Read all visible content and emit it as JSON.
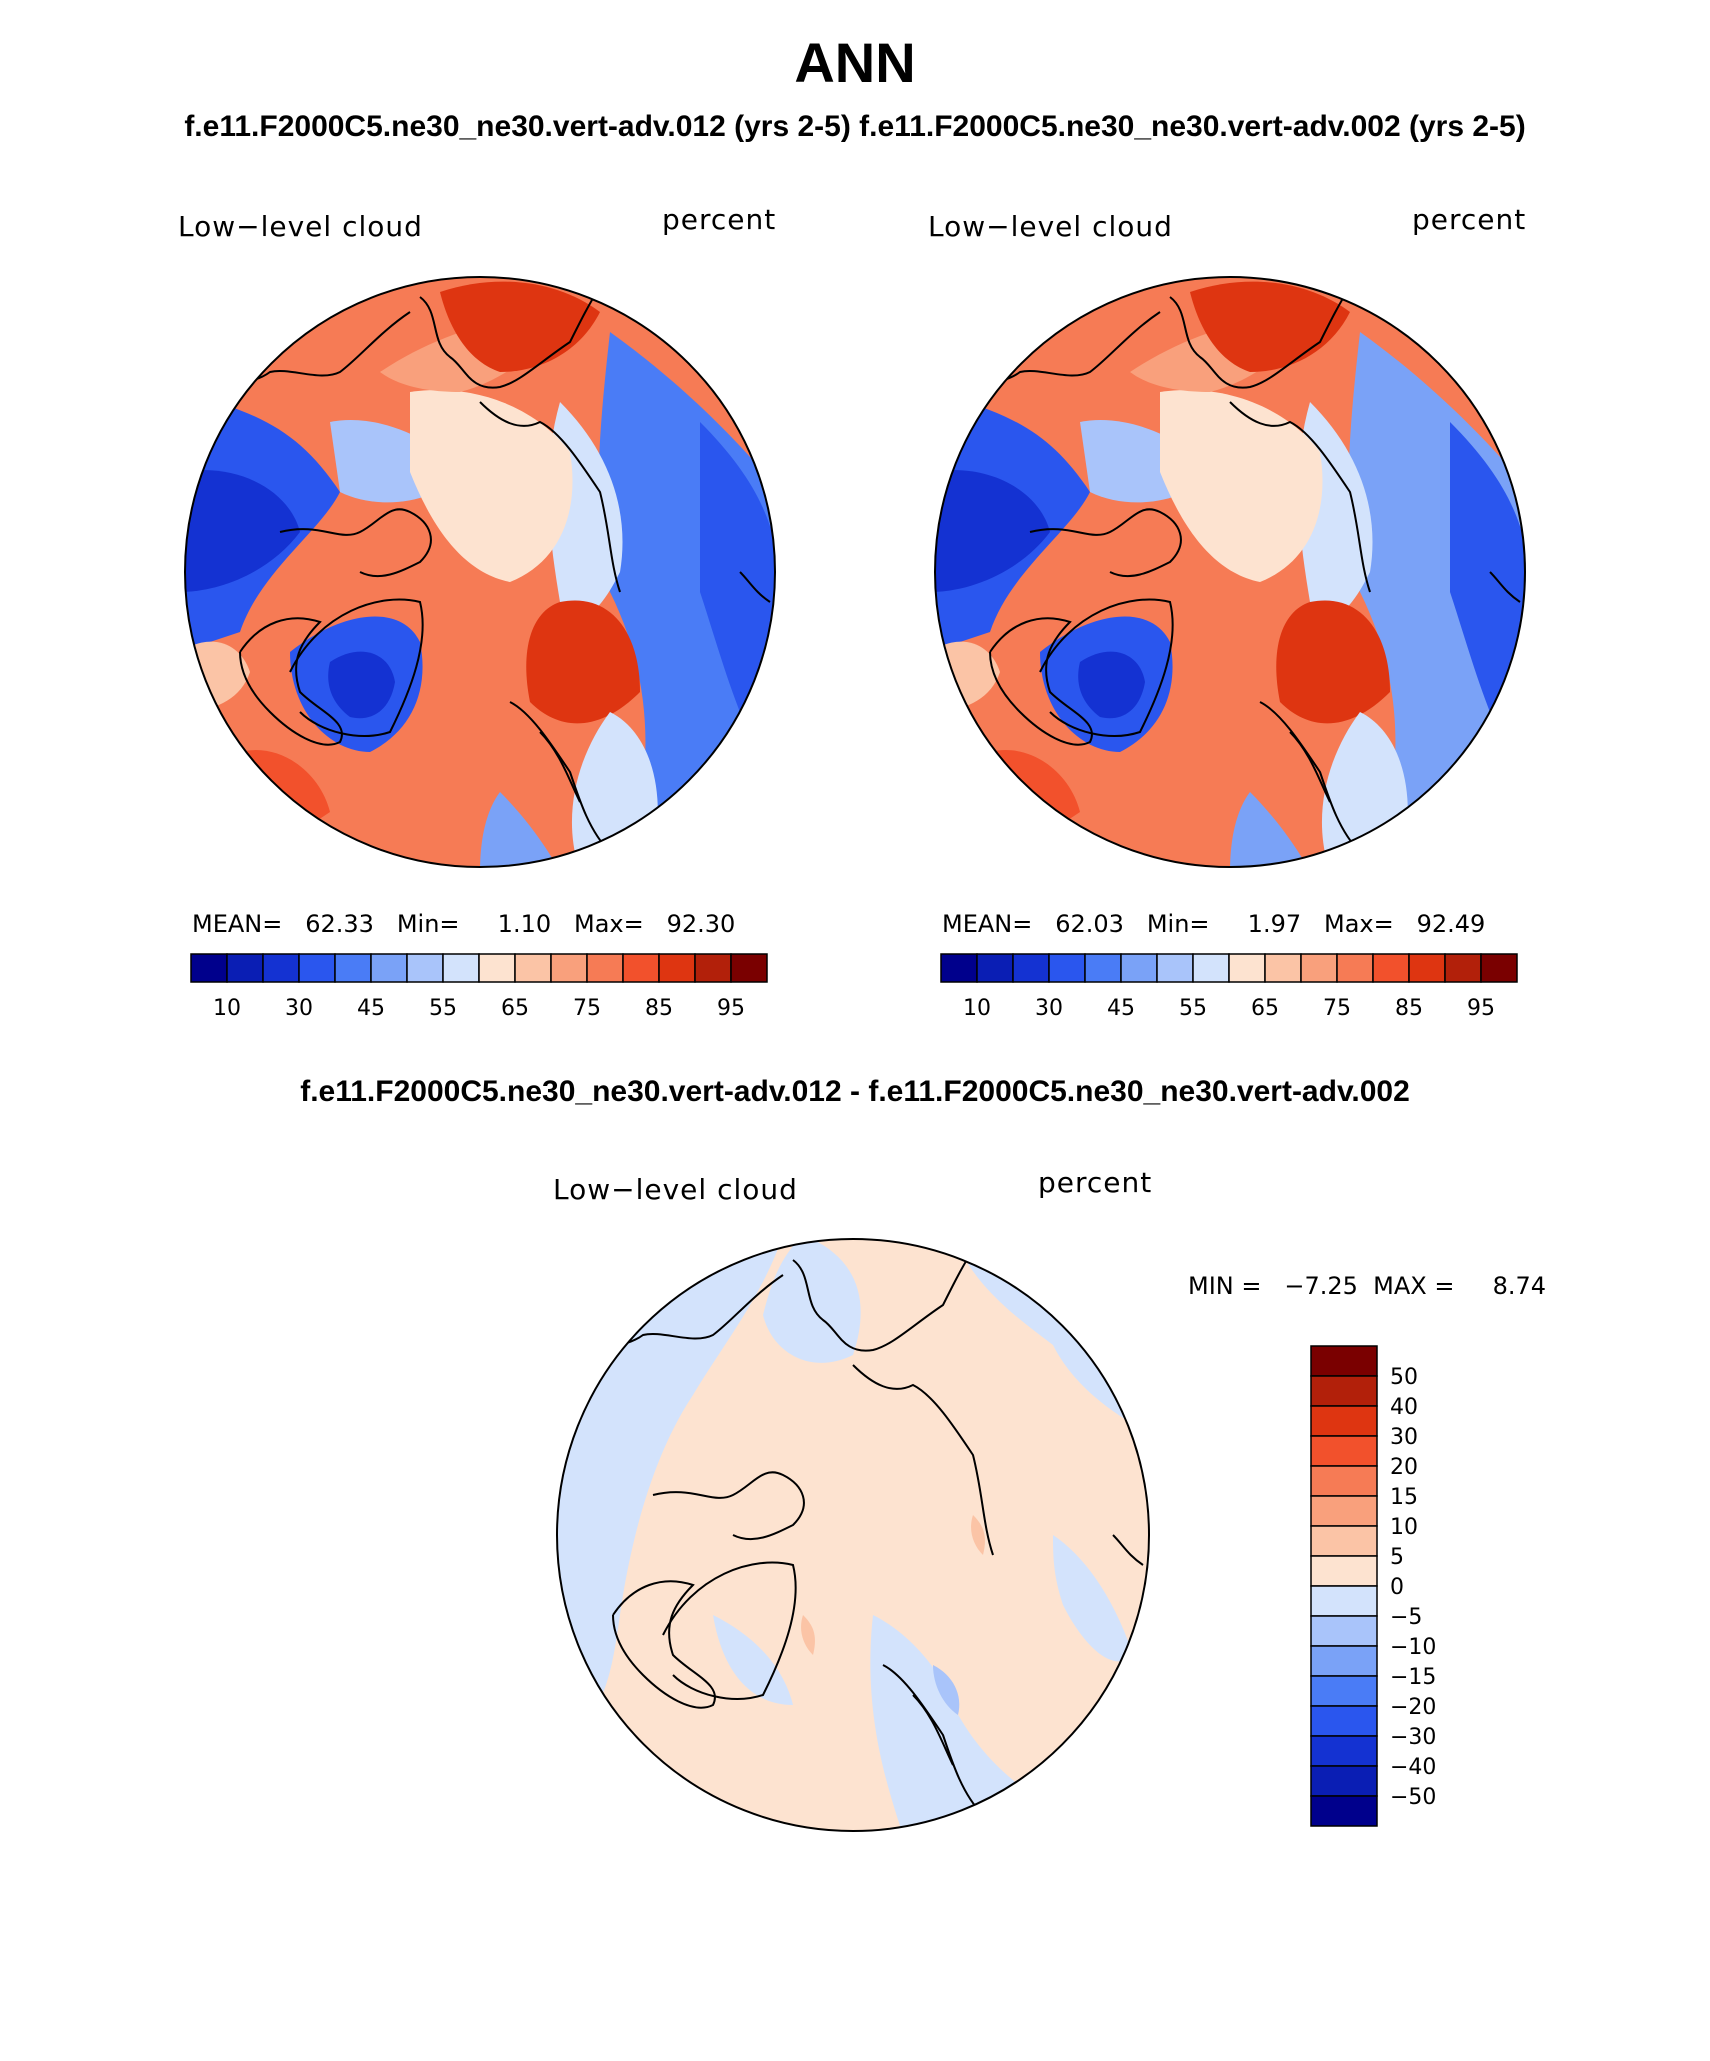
{
  "header": {
    "title": "ANN",
    "subtitle": "f.e11.F2000C5.ne30_ne30.vert-adv.012 (yrs 2-5)  f.e11.F2000C5.ne30_ne30.vert-adv.002 (yrs 2-5)",
    "diff_title": "f.e11.F2000C5.ne30_ne30.vert-adv.012 - f.e11.F2000C5.ne30_ne30.vert-adv.002"
  },
  "panels": [
    {
      "variable": "Low−level cloud",
      "units": "percent",
      "stats": "MEAN=   62.33   Min=     1.10   Max=   92.30"
    },
    {
      "variable": "Low−level cloud",
      "units": "percent",
      "stats": "MEAN=   62.03   Min=     1.97   Max=   92.49"
    }
  ],
  "diff_panel": {
    "variable": "Low−level cloud",
    "units": "percent",
    "stats": "MIN =   −7.25  MAX =     8.74"
  },
  "colorbar_abs": {
    "labels": [
      "10",
      "30",
      "45",
      "55",
      "65",
      "75",
      "85",
      "95"
    ],
    "colors": [
      "#00008c",
      "#0a1eb4",
      "#1432d2",
      "#2a56ee",
      "#4a7cf6",
      "#7aa2f7",
      "#a9c4fa",
      "#d3e3fc",
      "#fde3d0",
      "#fbc4a6",
      "#f9a07c",
      "#f67b55",
      "#f2512c",
      "#de3511",
      "#b2200a",
      "#7a0000"
    ]
  },
  "colorbar_diff": {
    "labels": [
      "50",
      "40",
      "30",
      "20",
      "15",
      "10",
      "5",
      "0",
      "−5",
      "−10",
      "−15",
      "−20",
      "−30",
      "−40",
      "−50"
    ],
    "colors": [
      "#7a0000",
      "#b2200a",
      "#de3511",
      "#f2512c",
      "#f67b55",
      "#f9a07c",
      "#fbc4a6",
      "#fde3d0",
      "#d3e3fc",
      "#a9c4fa",
      "#7aa2f7",
      "#4a7cf6",
      "#2a56ee",
      "#1432d2",
      "#0a1eb4",
      "#00008c"
    ]
  }
}
